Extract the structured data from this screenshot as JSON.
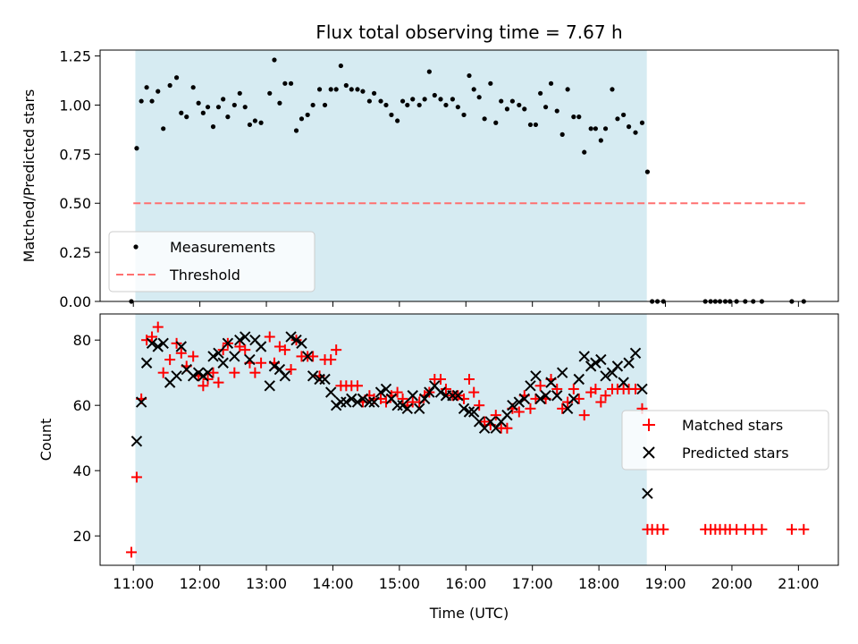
{
  "chart_data": {
    "title": "Flux total observing time = 7.67 h",
    "xlabel": "Time (UTC)",
    "x_unit": "hours UTC",
    "xlim": [
      10.5,
      21.6
    ],
    "x_ticks": [
      11,
      12,
      13,
      14,
      15,
      16,
      17,
      18,
      19,
      20,
      21
    ],
    "x_tick_labels": [
      "11:00",
      "12:00",
      "13:00",
      "14:00",
      "15:00",
      "16:00",
      "17:00",
      "18:00",
      "19:00",
      "20:00",
      "21:00"
    ],
    "observing_window": [
      11.03,
      18.72
    ],
    "colors": {
      "window": "#add8e6",
      "measurements": "#000000",
      "threshold": "#ff7070",
      "matched": "#ff0000",
      "predicted": "#000000"
    },
    "panels": [
      {
        "type": "scatter",
        "ylabel": "Matched/Predicted stars",
        "ylim": [
          0,
          1.28
        ],
        "y_ticks": [
          0,
          0.25,
          0.5,
          0.75,
          1.0,
          1.25
        ],
        "y_tick_labels": [
          "0.00",
          "0.25",
          "0.50",
          "0.75",
          "1.00",
          "1.25"
        ],
        "legend": [
          "Measurements",
          "Threshold"
        ],
        "threshold": {
          "name": "Threshold",
          "value": 0.5,
          "x_range": [
            11.0,
            21.1
          ]
        },
        "series": [
          {
            "name": "Measurements",
            "x": [
              10.97,
              11.05,
              11.12,
              11.2,
              11.28,
              11.37,
              11.45,
              11.55,
              11.65,
              11.72,
              11.8,
              11.9,
              11.98,
              12.05,
              12.12,
              12.2,
              12.28,
              12.35,
              12.42,
              12.52,
              12.6,
              12.68,
              12.75,
              12.83,
              12.92,
              13.05,
              13.12,
              13.2,
              13.28,
              13.37,
              13.45,
              13.53,
              13.62,
              13.7,
              13.8,
              13.88,
              13.97,
              14.05,
              14.12,
              14.2,
              14.28,
              14.37,
              14.45,
              14.55,
              14.62,
              14.72,
              14.8,
              14.88,
              14.97,
              15.05,
              15.12,
              15.2,
              15.3,
              15.38,
              15.45,
              15.53,
              15.62,
              15.7,
              15.8,
              15.88,
              15.97,
              16.05,
              16.12,
              16.2,
              16.28,
              16.37,
              16.45,
              16.53,
              16.62,
              16.7,
              16.8,
              16.88,
              16.97,
              17.05,
              17.12,
              17.2,
              17.28,
              17.37,
              17.45,
              17.53,
              17.62,
              17.7,
              17.78,
              17.88,
              17.95,
              18.03,
              18.1,
              18.2,
              18.28,
              18.37,
              18.45,
              18.55,
              18.65,
              18.73,
              18.8,
              18.88,
              18.97,
              19.6,
              19.68,
              19.75,
              19.82,
              19.9,
              19.97,
              20.07,
              20.2,
              20.32,
              20.45,
              20.9,
              21.08
            ],
            "y": [
              0.0,
              0.78,
              1.02,
              1.09,
              1.02,
              1.07,
              0.88,
              1.1,
              1.14,
              0.96,
              0.94,
              1.09,
              1.01,
              0.96,
              0.99,
              0.89,
              0.99,
              1.03,
              0.94,
              1.0,
              1.06,
              0.99,
              0.9,
              0.92,
              0.91,
              1.06,
              1.23,
              1.01,
              1.11,
              1.11,
              0.87,
              0.93,
              0.95,
              1.0,
              1.08,
              1.0,
              1.08,
              1.08,
              1.2,
              1.1,
              1.08,
              1.08,
              1.07,
              1.02,
              1.06,
              1.02,
              1.0,
              0.95,
              0.92,
              1.02,
              1.0,
              1.03,
              1.0,
              1.03,
              1.17,
              1.05,
              1.03,
              1.0,
              1.03,
              0.99,
              0.95,
              1.15,
              1.08,
              1.04,
              0.93,
              1.11,
              0.91,
              1.02,
              0.98,
              1.02,
              1.0,
              0.98,
              0.9,
              0.9,
              1.06,
              0.99,
              1.11,
              0.97,
              0.85,
              1.08,
              0.94,
              0.94,
              0.76,
              0.88,
              0.88,
              0.82,
              0.88,
              1.08,
              0.93,
              0.95,
              0.89,
              0.86,
              0.91,
              0.66,
              0.0,
              0.0,
              0.0,
              0.0,
              0.0,
              0.0,
              0.0,
              0.0,
              0.0,
              0.0,
              0.0,
              0.0,
              0.0,
              0.0,
              0.0
            ]
          }
        ]
      },
      {
        "type": "scatter",
        "ylabel": "Count",
        "ylim": [
          11,
          88
        ],
        "y_ticks": [
          20,
          40,
          60,
          80
        ],
        "y_tick_labels": [
          "20",
          "40",
          "60",
          "80"
        ],
        "legend": [
          "Matched stars",
          "Predicted stars"
        ],
        "series": [
          {
            "name": "Matched stars",
            "marker": "plus",
            "x": [
              10.97,
              11.05,
              11.12,
              11.2,
              11.28,
              11.37,
              11.45,
              11.55,
              11.65,
              11.72,
              11.8,
              11.9,
              11.98,
              12.05,
              12.12,
              12.2,
              12.28,
              12.35,
              12.42,
              12.52,
              12.6,
              12.68,
              12.75,
              12.83,
              12.92,
              13.05,
              13.12,
              13.2,
              13.28,
              13.37,
              13.45,
              13.53,
              13.62,
              13.7,
              13.8,
              13.88,
              13.97,
              14.05,
              14.12,
              14.2,
              14.28,
              14.37,
              14.45,
              14.55,
              14.62,
              14.72,
              14.8,
              14.88,
              14.97,
              15.05,
              15.12,
              15.2,
              15.3,
              15.38,
              15.45,
              15.53,
              15.62,
              15.7,
              15.8,
              15.88,
              15.97,
              16.05,
              16.12,
              16.2,
              16.28,
              16.37,
              16.45,
              16.53,
              16.62,
              16.7,
              16.8,
              16.88,
              16.97,
              17.05,
              17.12,
              17.2,
              17.28,
              17.37,
              17.45,
              17.53,
              17.62,
              17.7,
              17.78,
              17.88,
              17.95,
              18.03,
              18.1,
              18.2,
              18.28,
              18.37,
              18.45,
              18.55,
              18.65,
              18.73,
              18.8,
              18.88,
              18.97,
              19.6,
              19.68,
              19.75,
              19.82,
              19.9,
              19.97,
              20.07,
              20.2,
              20.32,
              20.45,
              20.9,
              21.08
            ],
            "y": [
              15,
              38,
              62,
              80,
              81,
              84,
              70,
              74,
              79,
              76,
              72,
              75,
              69,
              66,
              68,
              70,
              67,
              77,
              79,
              70,
              78,
              77,
              73,
              70,
              73,
              81,
              73,
              78,
              77,
              71,
              80,
              75,
              75,
              75,
              69,
              74,
              74,
              77,
              66,
              66,
              66,
              66,
              61,
              63,
              62,
              62,
              61,
              63,
              64,
              62,
              60,
              61,
              61,
              63,
              64,
              68,
              68,
              65,
              63,
              63,
              62,
              68,
              64,
              60,
              55,
              54,
              57,
              53,
              53,
              59,
              58,
              63,
              59,
              62,
              66,
              62,
              68,
              65,
              59,
              61,
              65,
              62,
              57,
              64,
              65,
              61,
              63,
              65,
              65,
              65,
              65,
              65,
              59,
              22,
              22,
              22,
              22,
              22,
              22,
              22,
              22,
              22,
              22,
              22,
              22,
              22,
              22,
              22,
              22
            ]
          },
          {
            "name": "Predicted stars",
            "marker": "x",
            "x": [
              11.05,
              11.12,
              11.2,
              11.28,
              11.37,
              11.45,
              11.55,
              11.65,
              11.72,
              11.8,
              11.9,
              11.98,
              12.05,
              12.12,
              12.2,
              12.28,
              12.35,
              12.42,
              12.52,
              12.6,
              12.68,
              12.75,
              12.83,
              12.92,
              13.05,
              13.12,
              13.2,
              13.28,
              13.37,
              13.45,
              13.53,
              13.62,
              13.7,
              13.8,
              13.88,
              13.97,
              14.05,
              14.12,
              14.2,
              14.28,
              14.37,
              14.45,
              14.55,
              14.62,
              14.72,
              14.8,
              14.88,
              14.97,
              15.05,
              15.12,
              15.2,
              15.3,
              15.38,
              15.45,
              15.53,
              15.62,
              15.7,
              15.8,
              15.88,
              15.97,
              16.05,
              16.12,
              16.2,
              16.28,
              16.37,
              16.45,
              16.53,
              16.62,
              16.7,
              16.8,
              16.88,
              16.97,
              17.05,
              17.12,
              17.2,
              17.28,
              17.37,
              17.45,
              17.53,
              17.62,
              17.7,
              17.78,
              17.88,
              17.95,
              18.03,
              18.1,
              18.2,
              18.28,
              18.37,
              18.45,
              18.55,
              18.65,
              18.73
            ],
            "y": [
              49,
              61,
              73,
              79,
              78,
              79,
              67,
              69,
              78,
              71,
              69,
              70,
              69,
              70,
              75,
              76,
              73,
              79,
              75,
              80,
              81,
              74,
              80,
              78,
              66,
              72,
              71,
              69,
              81,
              80,
              79,
              75,
              69,
              68,
              68,
              64,
              60,
              61,
              61,
              62,
              61,
              62,
              61,
              61,
              64,
              65,
              62,
              60,
              60,
              59,
              63,
              59,
              62,
              64,
              66,
              64,
              63,
              63,
              63,
              59,
              58,
              58,
              55,
              53,
              55,
              53,
              55,
              57,
              60,
              61,
              62,
              66,
              69,
              62,
              63,
              67,
              63,
              70,
              59,
              62,
              68,
              75,
              72,
              73,
              74,
              69,
              70,
              72,
              67,
              73,
              76,
              65,
              33
            ]
          }
        ]
      }
    ]
  }
}
